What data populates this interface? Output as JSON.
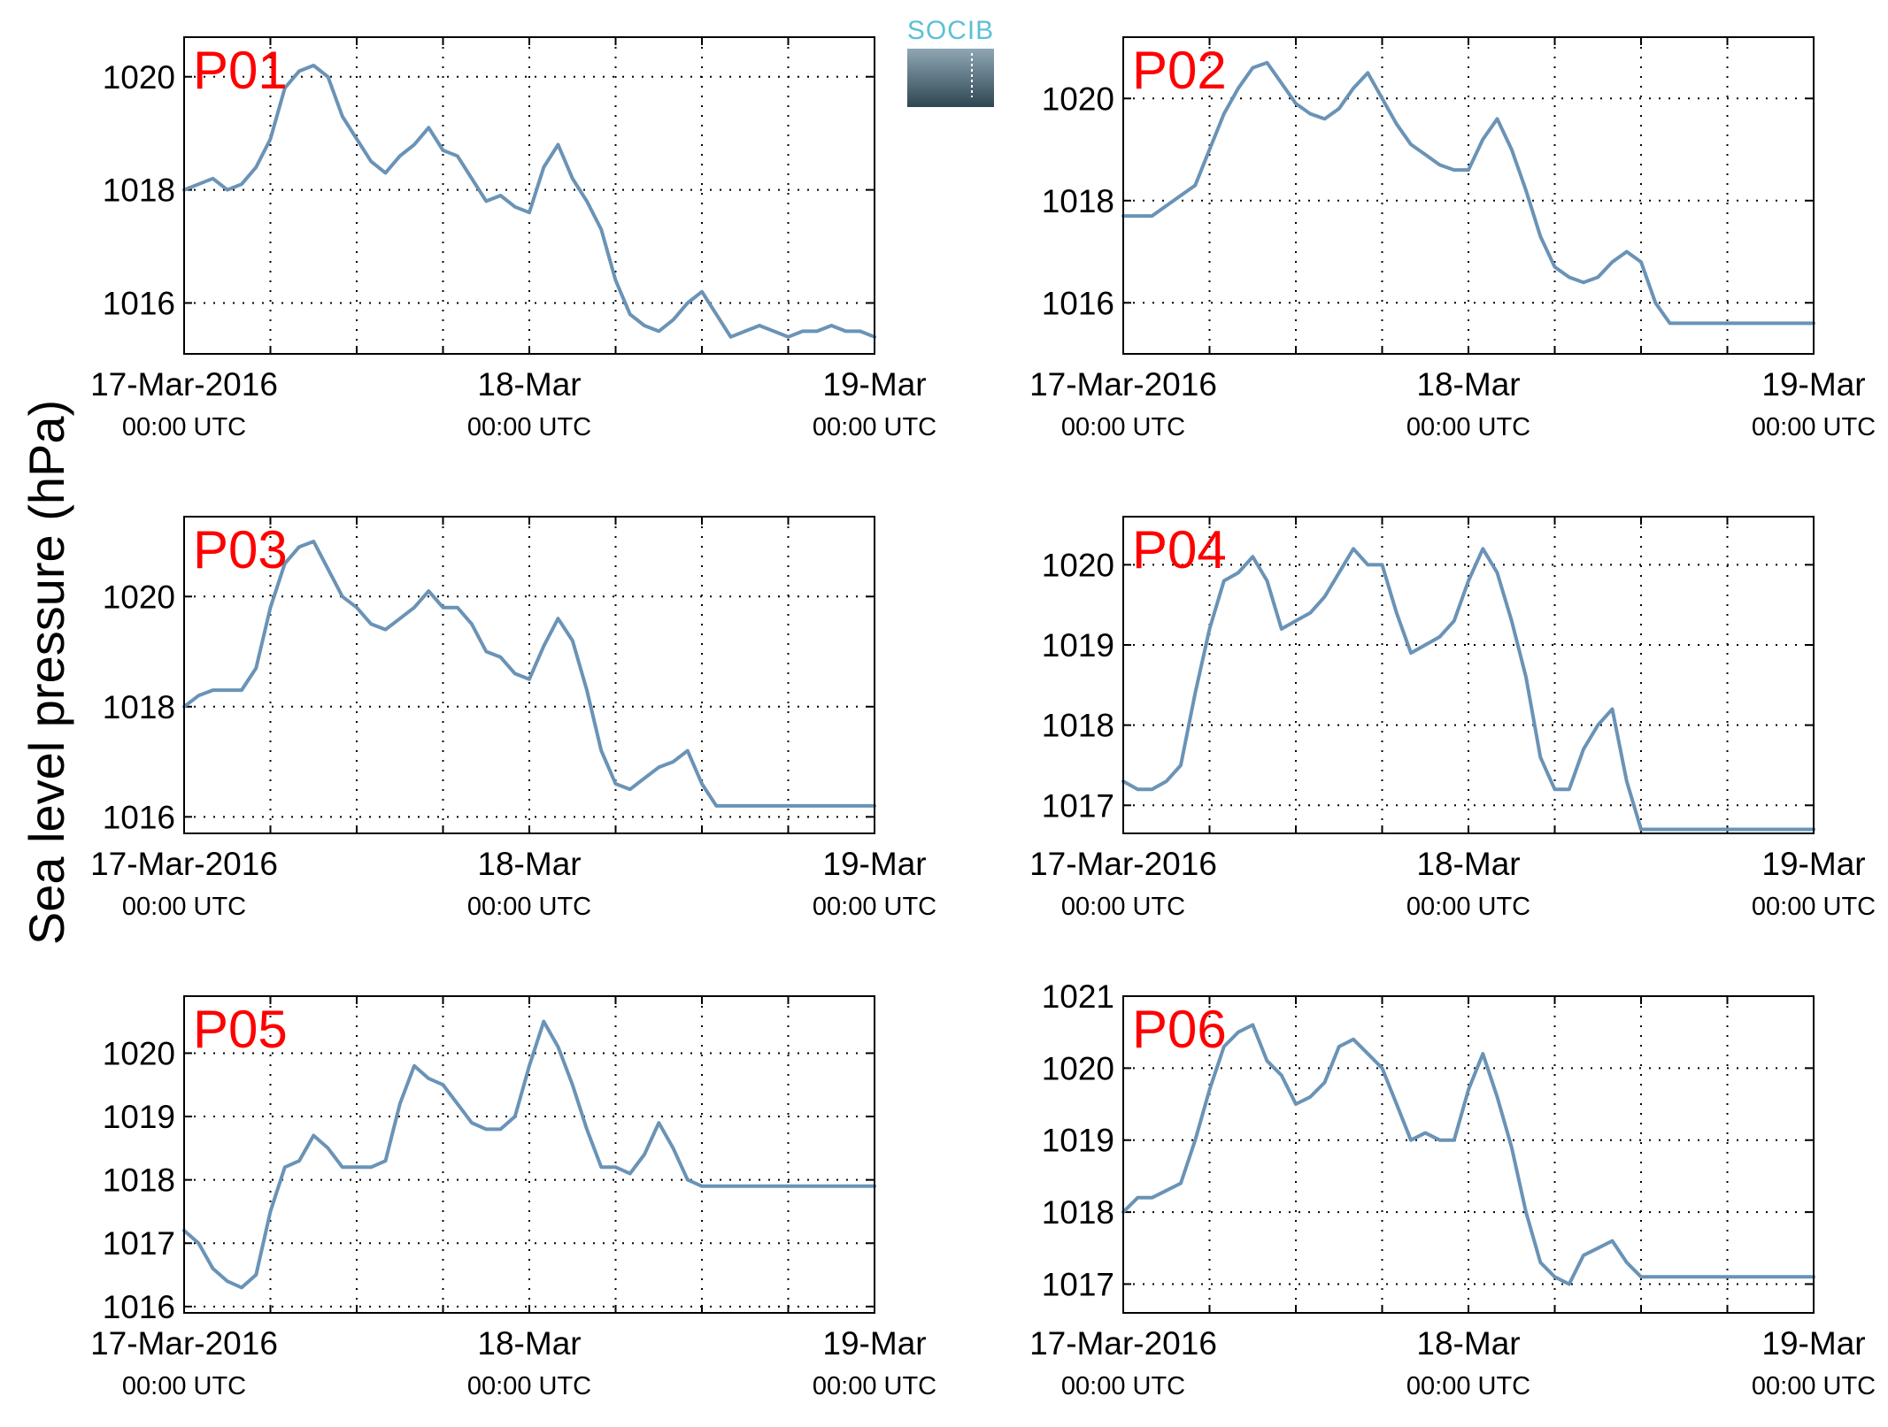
{
  "figure": {
    "ylabel": "Sea level pressure (hPa)",
    "logo_text": "SOCIB"
  },
  "chart_data": [
    {
      "type": "line",
      "panel_label": "P01",
      "x_ticks": [
        {
          "value": 0,
          "label": "17-Mar-2016",
          "sublabel": "00:00 UTC"
        },
        {
          "value": 24,
          "label": "18-Mar",
          "sublabel": "00:00 UTC"
        },
        {
          "value": 48,
          "label": "19-Mar",
          "sublabel": "00:00 UTC"
        }
      ],
      "x_unit": "hours since 17-Mar-2016 00:00 UTC",
      "xlim": [
        0,
        48
      ],
      "ylim": [
        1015.1,
        1020.7
      ],
      "yticks": [
        1016,
        1018,
        1020
      ],
      "x_grid_step": 6,
      "grid": true,
      "color": "#6a93b6",
      "x": [
        0,
        1,
        2,
        3,
        4,
        5,
        6,
        7,
        8,
        9,
        10,
        11,
        12,
        13,
        14,
        15,
        16,
        17,
        18,
        19,
        20,
        21,
        22,
        23,
        24,
        25,
        26,
        27,
        28,
        29,
        30,
        31,
        32,
        33,
        34,
        35,
        36,
        37,
        38,
        39,
        40,
        41,
        42,
        43,
        44,
        45,
        46,
        47,
        48
      ],
      "y": [
        1018.0,
        1018.1,
        1018.2,
        1018.0,
        1018.1,
        1018.4,
        1018.9,
        1019.8,
        1020.1,
        1020.2,
        1020.0,
        1019.3,
        1018.9,
        1018.5,
        1018.3,
        1018.6,
        1018.8,
        1019.1,
        1018.7,
        1018.6,
        1018.2,
        1017.8,
        1017.9,
        1017.7,
        1017.6,
        1018.4,
        1018.8,
        1018.2,
        1017.8,
        1017.3,
        1016.4,
        1015.8,
        1015.6,
        1015.5,
        1015.7,
        1016.0,
        1016.2,
        1015.8,
        1015.4,
        1015.5,
        1015.6,
        1015.5,
        1015.4,
        1015.5,
        1015.5,
        1015.6,
        1015.5,
        1015.5,
        1015.4
      ]
    },
    {
      "type": "line",
      "panel_label": "P02",
      "x_ticks": [
        {
          "value": 0,
          "label": "17-Mar-2016",
          "sublabel": "00:00 UTC"
        },
        {
          "value": 24,
          "label": "18-Mar",
          "sublabel": "00:00 UTC"
        },
        {
          "value": 48,
          "label": "19-Mar",
          "sublabel": "00:00 UTC"
        }
      ],
      "x_unit": "hours since 17-Mar-2016 00:00 UTC",
      "xlim": [
        0,
        48
      ],
      "ylim": [
        1015.0,
        1021.2
      ],
      "yticks": [
        1016,
        1018,
        1020
      ],
      "x_grid_step": 6,
      "grid": true,
      "color": "#6a93b6",
      "x": [
        0,
        1,
        2,
        3,
        4,
        5,
        6,
        7,
        8,
        9,
        10,
        11,
        12,
        13,
        14,
        15,
        16,
        17,
        18,
        19,
        20,
        21,
        22,
        23,
        24,
        25,
        26,
        27,
        28,
        29,
        30,
        31,
        32,
        33,
        34,
        35,
        36,
        37,
        38,
        39,
        40,
        41,
        42,
        43,
        44,
        45,
        46,
        47,
        48
      ],
      "y": [
        1017.7,
        1017.7,
        1017.7,
        1017.9,
        1018.1,
        1018.3,
        1019.0,
        1019.7,
        1020.2,
        1020.6,
        1020.7,
        1020.3,
        1019.9,
        1019.7,
        1019.6,
        1019.8,
        1020.2,
        1020.5,
        1020.0,
        1019.5,
        1019.1,
        1018.9,
        1018.7,
        1018.6,
        1018.6,
        1019.2,
        1019.6,
        1019.0,
        1018.2,
        1017.3,
        1016.7,
        1016.5,
        1016.4,
        1016.5,
        1016.8,
        1017.0,
        1016.8,
        1016.0,
        1015.6,
        1015.6,
        1015.6,
        1015.6,
        1015.6,
        1015.6,
        1015.6,
        1015.6,
        1015.6,
        1015.6,
        1015.6
      ]
    },
    {
      "type": "line",
      "panel_label": "P03",
      "x_ticks": [
        {
          "value": 0,
          "label": "17-Mar-2016",
          "sublabel": "00:00 UTC"
        },
        {
          "value": 24,
          "label": "18-Mar",
          "sublabel": "00:00 UTC"
        },
        {
          "value": 48,
          "label": "19-Mar",
          "sublabel": "00:00 UTC"
        }
      ],
      "x_unit": "hours since 17-Mar-2016 00:00 UTC",
      "xlim": [
        0,
        48
      ],
      "ylim": [
        1015.7,
        1021.45
      ],
      "yticks": [
        1016,
        1018,
        1020
      ],
      "x_grid_step": 6,
      "grid": true,
      "color": "#6a93b6",
      "x": [
        0,
        1,
        2,
        3,
        4,
        5,
        6,
        7,
        8,
        9,
        10,
        11,
        12,
        13,
        14,
        15,
        16,
        17,
        18,
        19,
        20,
        21,
        22,
        23,
        24,
        25,
        26,
        27,
        28,
        29,
        30,
        31,
        32,
        33,
        34,
        35,
        36,
        37,
        38,
        39,
        40,
        41,
        42,
        43,
        44,
        45,
        46,
        47,
        48
      ],
      "y": [
        1018.0,
        1018.2,
        1018.3,
        1018.3,
        1018.3,
        1018.7,
        1019.8,
        1020.6,
        1020.9,
        1021.0,
        1020.5,
        1020.0,
        1019.8,
        1019.5,
        1019.4,
        1019.6,
        1019.8,
        1020.1,
        1019.8,
        1019.8,
        1019.5,
        1019.0,
        1018.9,
        1018.6,
        1018.5,
        1019.1,
        1019.6,
        1019.2,
        1018.3,
        1017.2,
        1016.6,
        1016.5,
        1016.7,
        1016.9,
        1017.0,
        1017.2,
        1016.6,
        1016.2,
        1016.2,
        1016.2,
        1016.2,
        1016.2,
        1016.2,
        1016.2,
        1016.2,
        1016.2,
        1016.2,
        1016.2,
        1016.2
      ]
    },
    {
      "type": "line",
      "panel_label": "P04",
      "x_ticks": [
        {
          "value": 0,
          "label": "17-Mar-2016",
          "sublabel": "00:00 UTC"
        },
        {
          "value": 24,
          "label": "18-Mar",
          "sublabel": "00:00 UTC"
        },
        {
          "value": 48,
          "label": "19-Mar",
          "sublabel": "00:00 UTC"
        }
      ],
      "x_unit": "hours since 17-Mar-2016 00:00 UTC",
      "xlim": [
        0,
        48
      ],
      "ylim": [
        1016.65,
        1020.6
      ],
      "yticks": [
        1017,
        1018,
        1019,
        1020
      ],
      "x_grid_step": 6,
      "grid": true,
      "color": "#6a93b6",
      "x": [
        0,
        1,
        2,
        3,
        4,
        5,
        6,
        7,
        8,
        9,
        10,
        11,
        12,
        13,
        14,
        15,
        16,
        17,
        18,
        19,
        20,
        21,
        22,
        23,
        24,
        25,
        26,
        27,
        28,
        29,
        30,
        31,
        32,
        33,
        34,
        35,
        36,
        37,
        38,
        39,
        40,
        41,
        42,
        43,
        44,
        45,
        46,
        47,
        48
      ],
      "y": [
        1017.3,
        1017.2,
        1017.2,
        1017.3,
        1017.5,
        1018.4,
        1019.2,
        1019.8,
        1019.9,
        1020.1,
        1019.8,
        1019.2,
        1019.3,
        1019.4,
        1019.6,
        1019.9,
        1020.2,
        1020.0,
        1020.0,
        1019.4,
        1018.9,
        1019.0,
        1019.1,
        1019.3,
        1019.8,
        1020.2,
        1019.9,
        1019.3,
        1018.6,
        1017.6,
        1017.2,
        1017.2,
        1017.7,
        1018.0,
        1018.2,
        1017.3,
        1016.7,
        1016.7,
        1016.7,
        1016.7,
        1016.7,
        1016.7,
        1016.7,
        1016.7,
        1016.7,
        1016.7,
        1016.7,
        1016.7,
        1016.7
      ]
    },
    {
      "type": "line",
      "panel_label": "P05",
      "x_ticks": [
        {
          "value": 0,
          "label": "17-Mar-2016",
          "sublabel": "00:00 UTC"
        },
        {
          "value": 24,
          "label": "18-Mar",
          "sublabel": "00:00 UTC"
        },
        {
          "value": 48,
          "label": "19-Mar",
          "sublabel": "00:00 UTC"
        }
      ],
      "x_unit": "hours since 17-Mar-2016 00:00 UTC",
      "xlim": [
        0,
        48
      ],
      "ylim": [
        1015.9,
        1020.9
      ],
      "yticks": [
        1016,
        1017,
        1018,
        1019,
        1020
      ],
      "x_grid_step": 6,
      "grid": true,
      "color": "#6a93b6",
      "x": [
        0,
        1,
        2,
        3,
        4,
        5,
        6,
        7,
        8,
        9,
        10,
        11,
        12,
        13,
        14,
        15,
        16,
        17,
        18,
        19,
        20,
        21,
        22,
        23,
        24,
        25,
        26,
        27,
        28,
        29,
        30,
        31,
        32,
        33,
        34,
        35,
        36,
        37,
        38,
        39,
        40,
        41,
        42,
        43,
        44,
        45,
        46,
        47,
        48
      ],
      "y": [
        1017.2,
        1017.0,
        1016.6,
        1016.4,
        1016.3,
        1016.5,
        1017.5,
        1018.2,
        1018.3,
        1018.7,
        1018.5,
        1018.2,
        1018.2,
        1018.2,
        1018.3,
        1019.2,
        1019.8,
        1019.6,
        1019.5,
        1019.2,
        1018.9,
        1018.8,
        1018.8,
        1019.0,
        1019.8,
        1020.5,
        1020.1,
        1019.5,
        1018.8,
        1018.2,
        1018.2,
        1018.1,
        1018.4,
        1018.9,
        1018.5,
        1018.0,
        1017.9,
        1017.9,
        1017.9,
        1017.9,
        1017.9,
        1017.9,
        1017.9,
        1017.9,
        1017.9,
        1017.9,
        1017.9,
        1017.9,
        1017.9
      ]
    },
    {
      "type": "line",
      "panel_label": "P06",
      "x_ticks": [
        {
          "value": 0,
          "label": "17-Mar-2016",
          "sublabel": "00:00 UTC"
        },
        {
          "value": 24,
          "label": "18-Mar",
          "sublabel": "00:00 UTC"
        },
        {
          "value": 48,
          "label": "19-Mar",
          "sublabel": "00:00 UTC"
        }
      ],
      "x_unit": "hours since 17-Mar-2016 00:00 UTC",
      "xlim": [
        0,
        48
      ],
      "ylim": [
        1016.6,
        1021.0
      ],
      "yticks": [
        1017,
        1018,
        1019,
        1020,
        1021
      ],
      "x_grid_step": 6,
      "grid": true,
      "color": "#6a93b6",
      "x": [
        0,
        1,
        2,
        3,
        4,
        5,
        6,
        7,
        8,
        9,
        10,
        11,
        12,
        13,
        14,
        15,
        16,
        17,
        18,
        19,
        20,
        21,
        22,
        23,
        24,
        25,
        26,
        27,
        28,
        29,
        30,
        31,
        32,
        33,
        34,
        35,
        36,
        37,
        38,
        39,
        40,
        41,
        42,
        43,
        44,
        45,
        46,
        47,
        48
      ],
      "y": [
        1018.0,
        1018.2,
        1018.2,
        1018.3,
        1018.4,
        1019.0,
        1019.7,
        1020.3,
        1020.5,
        1020.6,
        1020.1,
        1019.9,
        1019.5,
        1019.6,
        1019.8,
        1020.3,
        1020.4,
        1020.2,
        1020.0,
        1019.5,
        1019.0,
        1019.1,
        1019.0,
        1019.0,
        1019.7,
        1020.2,
        1019.6,
        1018.9,
        1018.0,
        1017.3,
        1017.1,
        1017.0,
        1017.4,
        1017.5,
        1017.6,
        1017.3,
        1017.1,
        1017.1,
        1017.1,
        1017.1,
        1017.1,
        1017.1,
        1017.1,
        1017.1,
        1017.1,
        1017.1,
        1017.1,
        1017.1,
        1017.1
      ]
    }
  ]
}
